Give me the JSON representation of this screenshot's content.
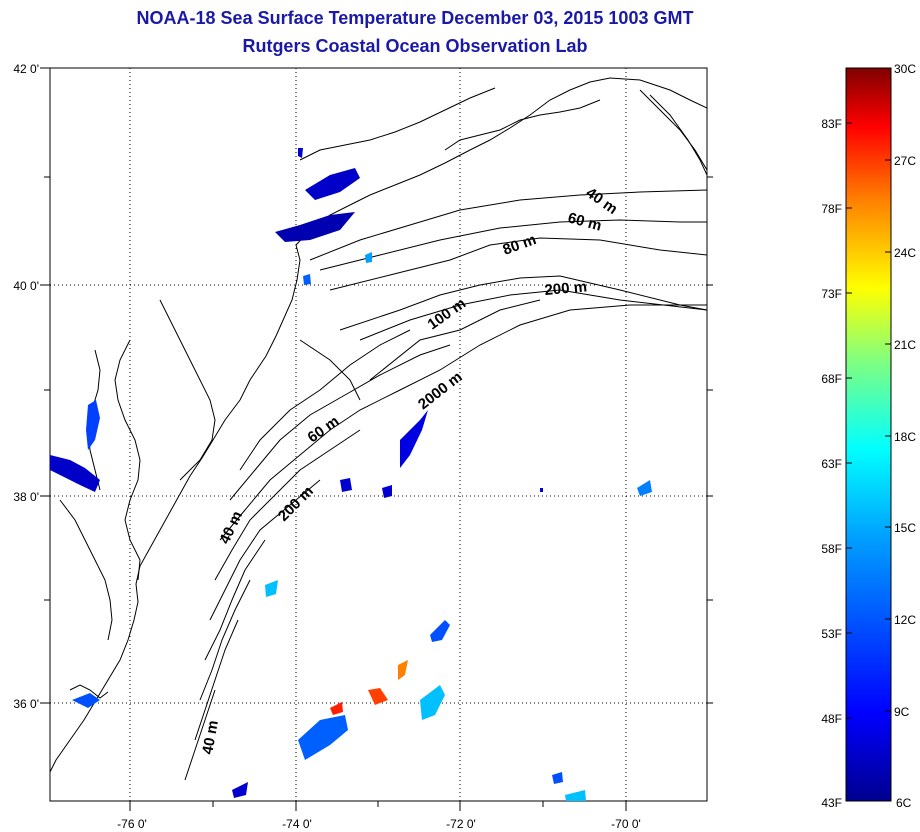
{
  "title": {
    "line1": "NOAA-18 Sea Surface Temperature December 03, 2015 1003 GMT",
    "line2": "Rutgers Coastal Ocean Observation Lab"
  },
  "map": {
    "lat_labels": [
      "42 0'",
      "40 0'",
      "38 0'",
      "36 0'"
    ],
    "lon_labels": [
      "-76 0'",
      "-74 0'",
      "-72 0'",
      "-70 0'"
    ],
    "contour_labels": [
      "40 m",
      "60 m",
      "80 m",
      "200 m",
      "100 m",
      "2000 m",
      "60 m",
      "200 m",
      "40 m",
      "40 m"
    ],
    "colors": {
      "coastline": "#000000",
      "grid": "#000000",
      "background": "#ffffff"
    }
  },
  "colorbar": {
    "celsius_labels": [
      "30C",
      "27C",
      "24C",
      "21C",
      "18C",
      "15C",
      "12C",
      "9C",
      "6C"
    ],
    "fahrenheit_labels": [
      "83F",
      "78F",
      "73F",
      "68F",
      "63F",
      "58F",
      "53F",
      "48F",
      "43F"
    ],
    "colormap": [
      "#00008f",
      "#0000ff",
      "#0080ff",
      "#00ffff",
      "#80ff80",
      "#ffff00",
      "#ff8000",
      "#ff0000",
      "#800000"
    ]
  }
}
